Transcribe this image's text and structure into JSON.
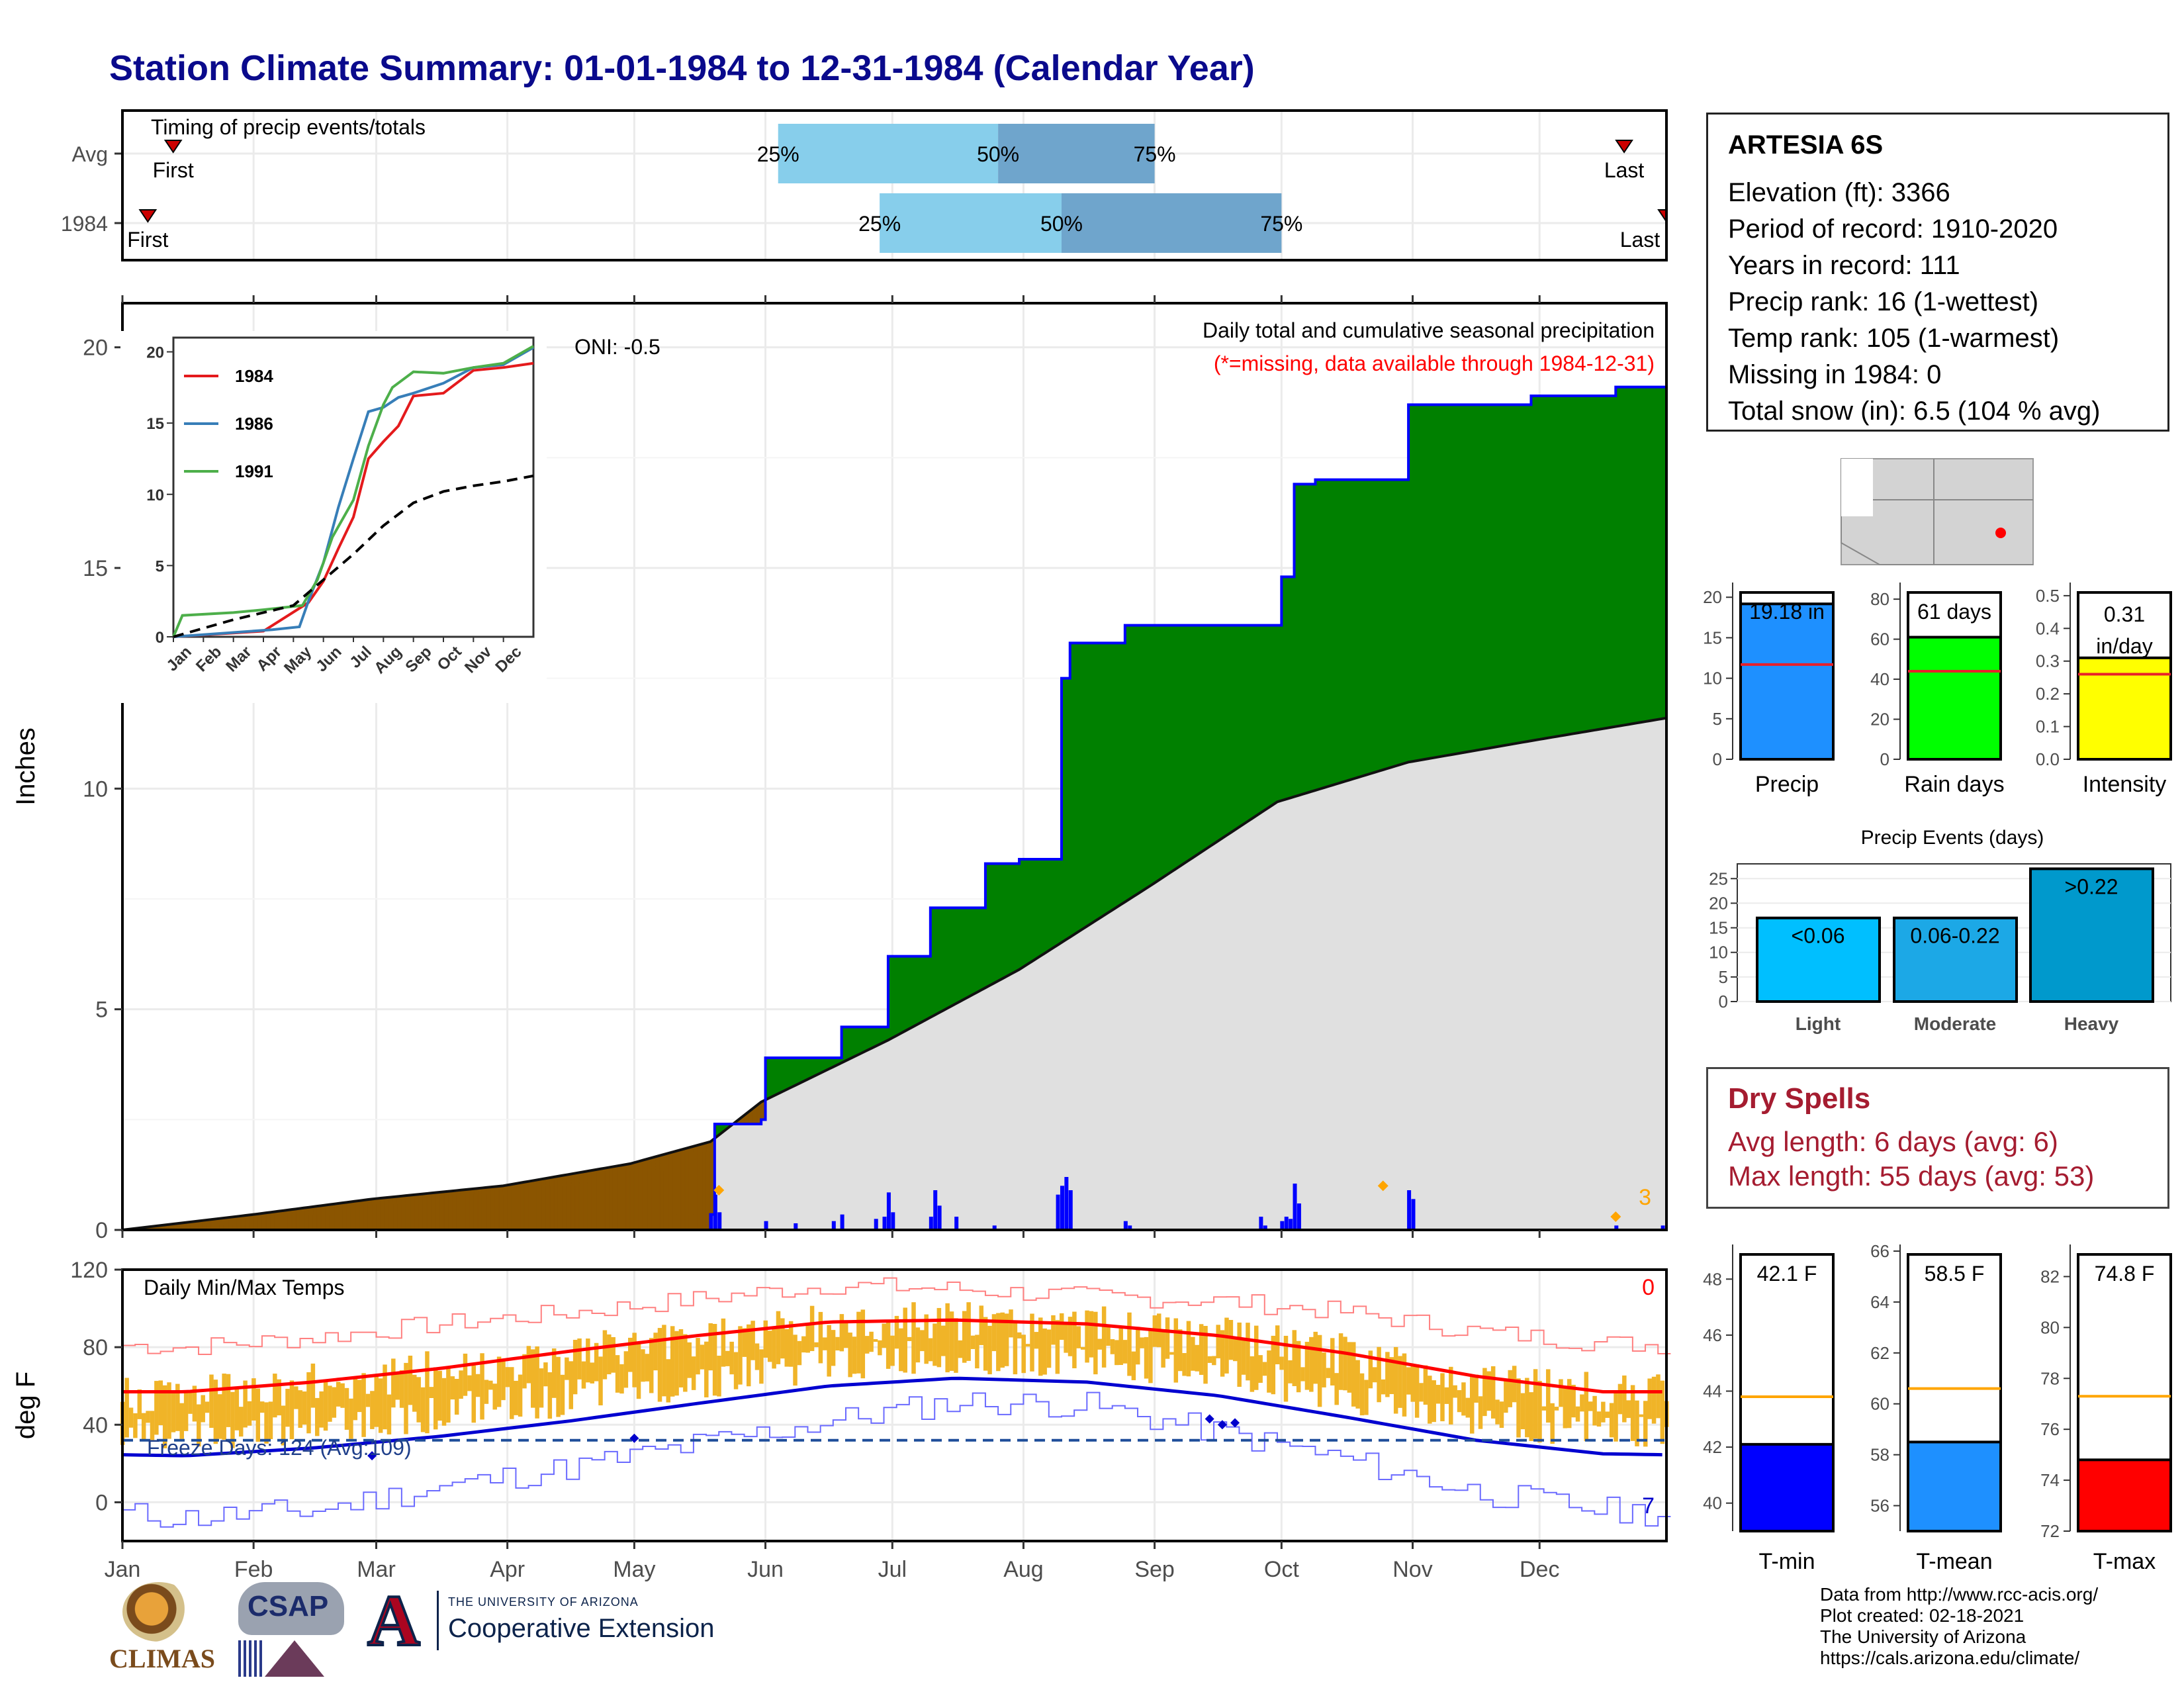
{
  "title": "Station Climate Summary: 01-01-1984 to 12-31-1984 (Calendar Year)",
  "colors": {
    "title": "#0a0a8c",
    "precip_year": "#0000ff",
    "cum_fill": "#008000",
    "cum_normal_fill": "#e0e0e0",
    "early_fill": "#8b5500",
    "dry": "#a51c30",
    "temp_bar": "#f0b428",
    "tmax": "#ff0000",
    "tmin": "#0000d0"
  },
  "timing": {
    "title": "Timing of precip events/totals",
    "rows": [
      "Avg",
      "1984"
    ],
    "first_label": "First",
    "last_label": "Last",
    "pct_labels": [
      "25%",
      "50%",
      "75%"
    ]
  },
  "station": {
    "name": "ARTESIA 6S",
    "rows": [
      "Elevation (ft): 3366",
      "Period of record: 1910-2020",
      "Years in record: 111",
      "Precip rank: 16 (1-wettest)",
      "Temp rank: 105 (1-warmest)",
      "Missing in 1984: 0",
      "Total snow (in): 6.5 (104 % avg)"
    ]
  },
  "main_precip": {
    "ylabel": "Inches",
    "oni": "ONI: -0.5",
    "heading": "Daily total and cumulative seasonal precipitation",
    "missing_note": "(*=missing, data available through 1984-12-31)",
    "corner_count": "3",
    "yticks": [
      "0",
      "5",
      "10",
      "15",
      "20"
    ],
    "months": [
      "Jan",
      "Feb",
      "Mar",
      "Apr",
      "May",
      "Jun",
      "Jul",
      "Aug",
      "Sep",
      "Oct",
      "Nov",
      "Dec"
    ]
  },
  "temps": {
    "ylabel": "deg F",
    "title": "Daily Min/Max Temps",
    "freeze": "Freeze Days: 124 (Avg:109)",
    "count_hot": "0",
    "count_cold": "7",
    "yticks": [
      "0",
      "40",
      "80",
      "120"
    ]
  },
  "precip_bars": [
    {
      "label": "Precip",
      "value_text": "19.18 in",
      "ticks": [
        "0",
        "5",
        "10",
        "15",
        "20"
      ],
      "color": "#1e90ff"
    },
    {
      "label": "Rain days",
      "value_text": "61 days",
      "ticks": [
        "0",
        "20",
        "40",
        "60",
        "80"
      ],
      "color": "#00ff00"
    },
    {
      "label": "Intensity",
      "value_text": "0.31 in/day",
      "ticks": [
        "0.0",
        "0.1",
        "0.2",
        "0.3",
        "0.4",
        "0.5"
      ],
      "color": "#ffff00"
    }
  ],
  "events": {
    "title": "Precip Events (days)",
    "categories": [
      "Light",
      "Moderate",
      "Heavy"
    ],
    "labels": [
      "<0.06",
      "0.06-0.22",
      ">0.22"
    ],
    "ticks": [
      "0",
      "5",
      "10",
      "15",
      "20",
      "25"
    ]
  },
  "dry_spells": {
    "title": "Dry Spells",
    "avg": "Avg length: 6 days (avg: 6)",
    "max": "Max length: 55 days (avg: 53)"
  },
  "temp_bars": [
    {
      "label": "T-min",
      "value_text": "42.1 F",
      "ticks": [
        "40",
        "42",
        "44",
        "46",
        "48"
      ],
      "color": "#0000ff"
    },
    {
      "label": "T-mean",
      "value_text": "58.5 F",
      "ticks": [
        "56",
        "58",
        "60",
        "62",
        "64",
        "66"
      ],
      "color": "#1e90ff"
    },
    {
      "label": "T-max",
      "value_text": "74.8 F",
      "ticks": [
        "72",
        "74",
        "76",
        "78",
        "80",
        "82"
      ],
      "color": "#ff0000"
    }
  ],
  "inset": {
    "legend": [
      "1984",
      "1986",
      "1991"
    ],
    "yticks": [
      "0",
      "5",
      "10",
      "15",
      "20"
    ],
    "months": [
      "Jan",
      "Feb",
      "Mar",
      "Apr",
      "May",
      "Jun",
      "Jul",
      "Aug",
      "Sep",
      "Oct",
      "Nov",
      "Dec"
    ]
  },
  "credits": [
    "Data from http://www.rcc-acis.org/",
    "Plot created: 02-18-2021",
    "The University of Arizona",
    "https://cals.arizona.edu/climate/"
  ],
  "logos": {
    "climas": "CLIMAS",
    "csap": "CSAP",
    "ua_line1": "THE UNIVERSITY OF ARIZONA",
    "ua_line2": "Cooperative Extension"
  },
  "chart_data": [
    {
      "type": "area",
      "title": "Daily total and cumulative seasonal precipitation",
      "ylabel": "Inches",
      "ylim": [
        0,
        21
      ],
      "x_unit": "day of year 1984",
      "cumulative_1984": {
        "x": [
          1,
          140,
          141,
          152,
          153,
          171,
          182,
          192,
          205,
          213,
          223,
          225,
          238,
          275,
          278,
          283,
          305,
          334,
          354,
          366
        ],
        "y": [
          0.0,
          0.35,
          2.4,
          2.5,
          3.9,
          4.6,
          6.2,
          7.3,
          8.3,
          8.4,
          12.5,
          13.3,
          13.7,
          14.8,
          16.9,
          17.0,
          18.7,
          18.9,
          19.1,
          19.18
        ]
      },
      "normal_cumulative": {
        "x": [
          1,
          32,
          60,
          91,
          121,
          140,
          152,
          182,
          213,
          244,
          274,
          305,
          335,
          366
        ],
        "y": [
          0.0,
          0.35,
          0.7,
          1.0,
          1.5,
          2.0,
          2.9,
          4.3,
          5.9,
          7.8,
          9.7,
          10.6,
          11.1,
          11.6
        ]
      },
      "daily_precip": {
        "x": [
          140,
          141,
          142,
          153,
          160,
          169,
          171,
          179,
          181,
          182,
          183,
          192,
          193,
          194,
          198,
          207,
          222,
          223,
          224,
          225,
          238,
          239,
          270,
          271,
          275,
          276,
          277,
          278,
          279,
          305,
          306,
          354,
          365
        ],
        "y": [
          0.35,
          0.8,
          0.4,
          0.2,
          0.15,
          0.2,
          0.35,
          0.25,
          0.3,
          0.85,
          0.4,
          0.3,
          0.9,
          0.55,
          0.3,
          0.1,
          0.8,
          1.0,
          1.2,
          0.9,
          0.2,
          0.1,
          0.3,
          0.1,
          0.2,
          0.3,
          0.25,
          1.05,
          0.6,
          0.9,
          0.7,
          0.1,
          0.1
        ]
      }
    },
    {
      "type": "line",
      "title": "Daily Min/Max Temps",
      "ylabel": "deg F",
      "ylim": [
        -20,
        120
      ],
      "x_unit": "month",
      "categories": [
        "Jan",
        "Feb",
        "Mar",
        "Apr",
        "May",
        "Jun",
        "Jul",
        "Aug",
        "Sep",
        "Oct",
        "Nov",
        "Dec"
      ],
      "series": [
        {
          "name": "normal max",
          "values": [
            57,
            62,
            69,
            78,
            86,
            93,
            94,
            92,
            86,
            77,
            65,
            57
          ]
        },
        {
          "name": "normal min",
          "values": [
            24,
            28,
            34,
            42,
            51,
            60,
            64,
            62,
            55,
            44,
            32,
            25
          ]
        },
        {
          "name": "record high",
          "values": [
            80,
            85,
            92,
            98,
            105,
            112,
            110,
            106,
            104,
            98,
            88,
            82
          ]
        },
        {
          "name": "record low",
          "values": [
            -8,
            -4,
            8,
            18,
            30,
            42,
            52,
            50,
            36,
            22,
            5,
            -4
          ]
        }
      ],
      "freeze_line": 32
    },
    {
      "type": "bar",
      "title": "Precip Events (days)",
      "categories": [
        "Light",
        "Moderate",
        "Heavy"
      ],
      "values": [
        17,
        17,
        27
      ],
      "ylim": [
        0,
        28
      ]
    },
    {
      "type": "bar",
      "categories": [
        "Precip",
        "Rain days",
        "Intensity"
      ],
      "values": [
        19.18,
        61,
        0.31
      ],
      "averages": [
        11.7,
        44,
        0.26
      ],
      "ylims": [
        [
          0,
          21
        ],
        [
          0,
          85
        ],
        [
          0,
          0.52
        ]
      ]
    },
    {
      "type": "bar",
      "categories": [
        "T-min",
        "T-mean",
        "T-max"
      ],
      "values": [
        42.1,
        58.5,
        74.8
      ],
      "averages": [
        43.8,
        60.6,
        77.3
      ],
      "ylims": [
        [
          39,
          49
        ],
        [
          55,
          66
        ],
        [
          72,
          83
        ]
      ]
    },
    {
      "type": "line",
      "inset": true,
      "ylim": [
        0,
        21
      ],
      "x_unit": "month index 0-12",
      "series": [
        {
          "name": "1984",
          "x": [
            0,
            3,
            4.5,
            5,
            5.5,
            6,
            6.5,
            7,
            7.5,
            8,
            9,
            10,
            11,
            12
          ],
          "y": [
            0,
            0.4,
            2.4,
            3.9,
            6.2,
            8.4,
            12.5,
            13.7,
            14.8,
            16.9,
            17.1,
            18.7,
            18.9,
            19.2
          ]
        },
        {
          "name": "1986",
          "x": [
            0,
            3.3,
            4.2,
            4.5,
            5,
            5.5,
            6,
            6.5,
            7,
            7.5,
            8,
            9,
            10,
            11,
            12
          ],
          "y": [
            0,
            0.5,
            0.7,
            2.5,
            5.2,
            9.1,
            12.5,
            15.8,
            16.1,
            16.8,
            17.1,
            17.8,
            18.9,
            19.1,
            20.3
          ]
        },
        {
          "name": "1991",
          "x": [
            0,
            0.3,
            2,
            3,
            4.3,
            4.8,
            5.3,
            6,
            6.5,
            7,
            7.3,
            8,
            9,
            10,
            11,
            12
          ],
          "y": [
            0,
            1.5,
            1.7,
            1.9,
            2.2,
            4.0,
            7.0,
            9.6,
            13.4,
            16.3,
            17.5,
            18.6,
            18.5,
            18.9,
            19.2,
            20.4
          ]
        },
        {
          "name": "average",
          "x": [
            0,
            2,
            4,
            5,
            6,
            7,
            8,
            9,
            10,
            11,
            12
          ],
          "y": [
            0,
            1.2,
            2.2,
            4.0,
            5.8,
            7.8,
            9.4,
            10.2,
            10.6,
            10.9,
            11.3
          ]
        }
      ]
    }
  ]
}
